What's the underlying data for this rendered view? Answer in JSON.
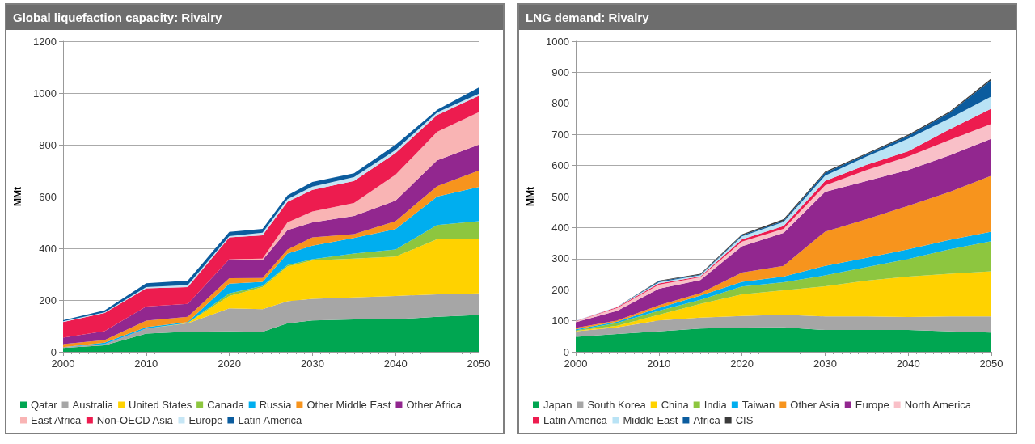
{
  "chart_data": [
    {
      "type": "area",
      "title": "Global liquefaction capacity: Rivalry",
      "ylabel": "MMt",
      "stacked": true,
      "grid": "y",
      "legend": "bottom",
      "x": [
        2000,
        2005,
        2010,
        2015,
        2020,
        2024,
        2027,
        2030,
        2035,
        2040,
        2045,
        2050
      ],
      "xlim": [
        2000,
        2050
      ],
      "xticks": [
        2000,
        2010,
        2020,
        2030,
        2040,
        2050
      ],
      "ylim": [
        0,
        1200
      ],
      "yticks": [
        0,
        200,
        400,
        600,
        800,
        1000,
        1200
      ],
      "series": [
        {
          "name": "Qatar",
          "color": "#00a651",
          "values": [
            15,
            25,
            70,
            77,
            79,
            77,
            110,
            121,
            125,
            126,
            135,
            142
          ]
        },
        {
          "name": "Australia",
          "color": "#a6a6a6",
          "values": [
            3,
            5,
            20,
            33,
            89,
            88,
            85,
            84,
            85,
            90,
            87,
            84
          ]
        },
        {
          "name": "United States",
          "color": "#ffd200",
          "values": [
            0,
            0,
            0,
            2,
            48,
            85,
            135,
            148,
            150,
            152,
            213,
            211
          ]
        },
        {
          "name": "Canada",
          "color": "#8dc63f",
          "values": [
            0,
            0,
            0,
            0,
            10,
            5,
            5,
            5,
            20,
            27,
            55,
            68
          ]
        },
        {
          "name": "Russia",
          "color": "#00aeef",
          "values": [
            0,
            5,
            5,
            3,
            37,
            15,
            45,
            52,
            60,
            79,
            110,
            132
          ]
        },
        {
          "name": "Other Middle East",
          "color": "#f7941d",
          "values": [
            12,
            10,
            25,
            20,
            21,
            15,
            15,
            32,
            15,
            31,
            40,
            63
          ]
        },
        {
          "name": "Other Africa",
          "color": "#92278f",
          "values": [
            25,
            35,
            55,
            50,
            74,
            70,
            75,
            58,
            70,
            79,
            100,
            100
          ]
        },
        {
          "name": "East Africa",
          "color": "#f9b4b4",
          "values": [
            0,
            0,
            0,
            0,
            0,
            5,
            30,
            42,
            50,
            100,
            110,
            126
          ]
        },
        {
          "name": "Non-OECD Asia",
          "color": "#ed1c4f",
          "values": [
            60,
            70,
            70,
            65,
            84,
            90,
            80,
            84,
            85,
            84,
            65,
            63
          ]
        },
        {
          "name": "Europe",
          "color": "#c6e6f5",
          "values": [
            3,
            2,
            5,
            8,
            5,
            10,
            10,
            12,
            15,
            12,
            10,
            8
          ]
        },
        {
          "name": "Latin America",
          "color": "#0b5c9e",
          "values": [
            4,
            8,
            15,
            17,
            16,
            15,
            15,
            18,
            15,
            20,
            10,
            24
          ]
        }
      ]
    },
    {
      "type": "area",
      "title": "LNG demand: Rivalry",
      "ylabel": "MMt",
      "stacked": true,
      "grid": "y",
      "legend": "bottom",
      "x": [
        2000,
        2005,
        2010,
        2015,
        2020,
        2025,
        2030,
        2035,
        2040,
        2045,
        2050
      ],
      "xlim": [
        2000,
        2050
      ],
      "xticks": [
        2000,
        2010,
        2020,
        2030,
        2040,
        2050
      ],
      "ylim": [
        0,
        1000
      ],
      "yticks": [
        0,
        100,
        200,
        300,
        400,
        500,
        600,
        700,
        800,
        900,
        1000
      ],
      "series": [
        {
          "name": "Japan",
          "color": "#00a651",
          "values": [
            48,
            57,
            66,
            75,
            78,
            79,
            70,
            70,
            70,
            66,
            62
          ]
        },
        {
          "name": "South Korea",
          "color": "#a6a6a6",
          "values": [
            18,
            22,
            35,
            35,
            37,
            40,
            44,
            44,
            42,
            48,
            52
          ]
        },
        {
          "name": "China",
          "color": "#ffd200",
          "values": [
            1,
            5,
            18,
            44,
            70,
            79,
            97,
            115,
            130,
            137,
            145
          ]
        },
        {
          "name": "India",
          "color": "#8dc63f",
          "values": [
            2,
            9,
            13,
            13,
            25,
            26,
            35,
            44,
            57,
            79,
            97
          ]
        },
        {
          "name": "Taiwan",
          "color": "#00aeef",
          "values": [
            3,
            4,
            9,
            14,
            15,
            18,
            31,
            30,
            31,
            31,
            31
          ]
        },
        {
          "name": "Other Asia",
          "color": "#f7941d",
          "values": [
            5,
            4,
            9,
            8,
            30,
            35,
            110,
            124,
            140,
            154,
            180
          ]
        },
        {
          "name": "Europe",
          "color": "#92278f",
          "values": [
            18,
            31,
            53,
            42,
            85,
            106,
            128,
            123,
            115,
            118,
            119
          ]
        },
        {
          "name": "North America",
          "color": "#f9c0c8",
          "values": [
            3,
            9,
            13,
            9,
            15,
            13,
            21,
            35,
            44,
            49,
            48
          ]
        },
        {
          "name": "Latin America",
          "color": "#ed1c4f",
          "values": [
            1,
            3,
            4,
            3,
            7,
            9,
            14,
            17,
            17,
            35,
            49
          ]
        },
        {
          "name": "Middle East",
          "color": "#b9e3f5",
          "values": [
            1,
            1,
            4,
            4,
            10,
            13,
            17,
            27,
            40,
            35,
            39
          ]
        },
        {
          "name": "Africa",
          "color": "#0b5c9e",
          "values": [
            0,
            0,
            3,
            2,
            3,
            4,
            9,
            7,
            9,
            18,
            53
          ]
        },
        {
          "name": "CIS",
          "color": "#3a3a3a",
          "values": [
            0,
            0,
            2,
            2,
            3,
            5,
            4,
            3,
            4,
            4,
            5
          ]
        }
      ]
    }
  ]
}
